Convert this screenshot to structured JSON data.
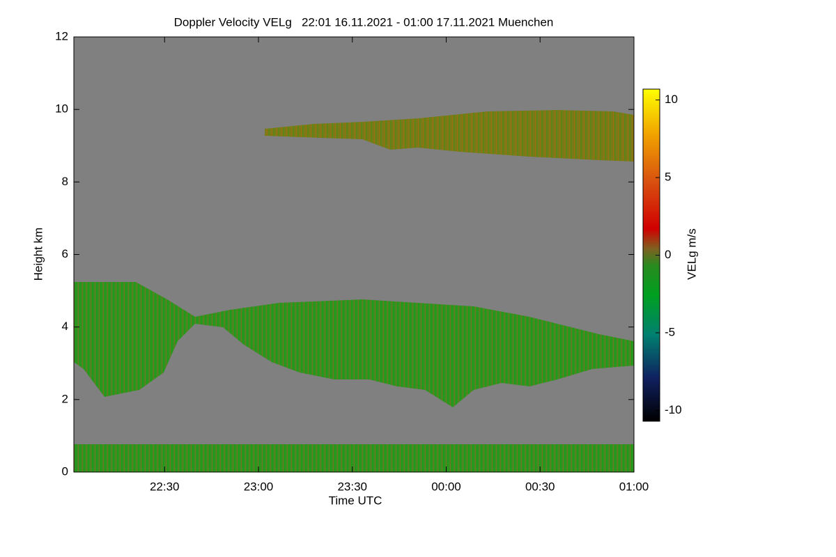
{
  "chart_data": {
    "type": "heatmap",
    "title": "Doppler Velocity VELg   22:01 16.11.2021 - 01:00 17.11.2021 Muenchen",
    "x_label": "Time UTC",
    "y_label": "Height km",
    "colorbar_label": "VELg m/s",
    "xlim": [
      "2021-11-16T22:01",
      "2021-11-17T01:00"
    ],
    "xticks": [
      {
        "value": "2021-11-16T22:30",
        "label": "22:30"
      },
      {
        "value": "2021-11-16T23:00",
        "label": "23:00"
      },
      {
        "value": "2021-11-16T23:30",
        "label": "23:30"
      },
      {
        "value": "2021-11-17T00:00",
        "label": "00:00"
      },
      {
        "value": "2021-11-17T00:30",
        "label": "00:30"
      },
      {
        "value": "2021-11-17T01:00",
        "label": "01:00"
      }
    ],
    "ylim": [
      0,
      12
    ],
    "yticks": [
      0,
      2,
      4,
      6,
      8,
      10,
      12
    ],
    "clim": [
      -10.7,
      10.7
    ],
    "cticks": [
      -10,
      -5,
      0,
      5,
      10
    ]
  }
}
